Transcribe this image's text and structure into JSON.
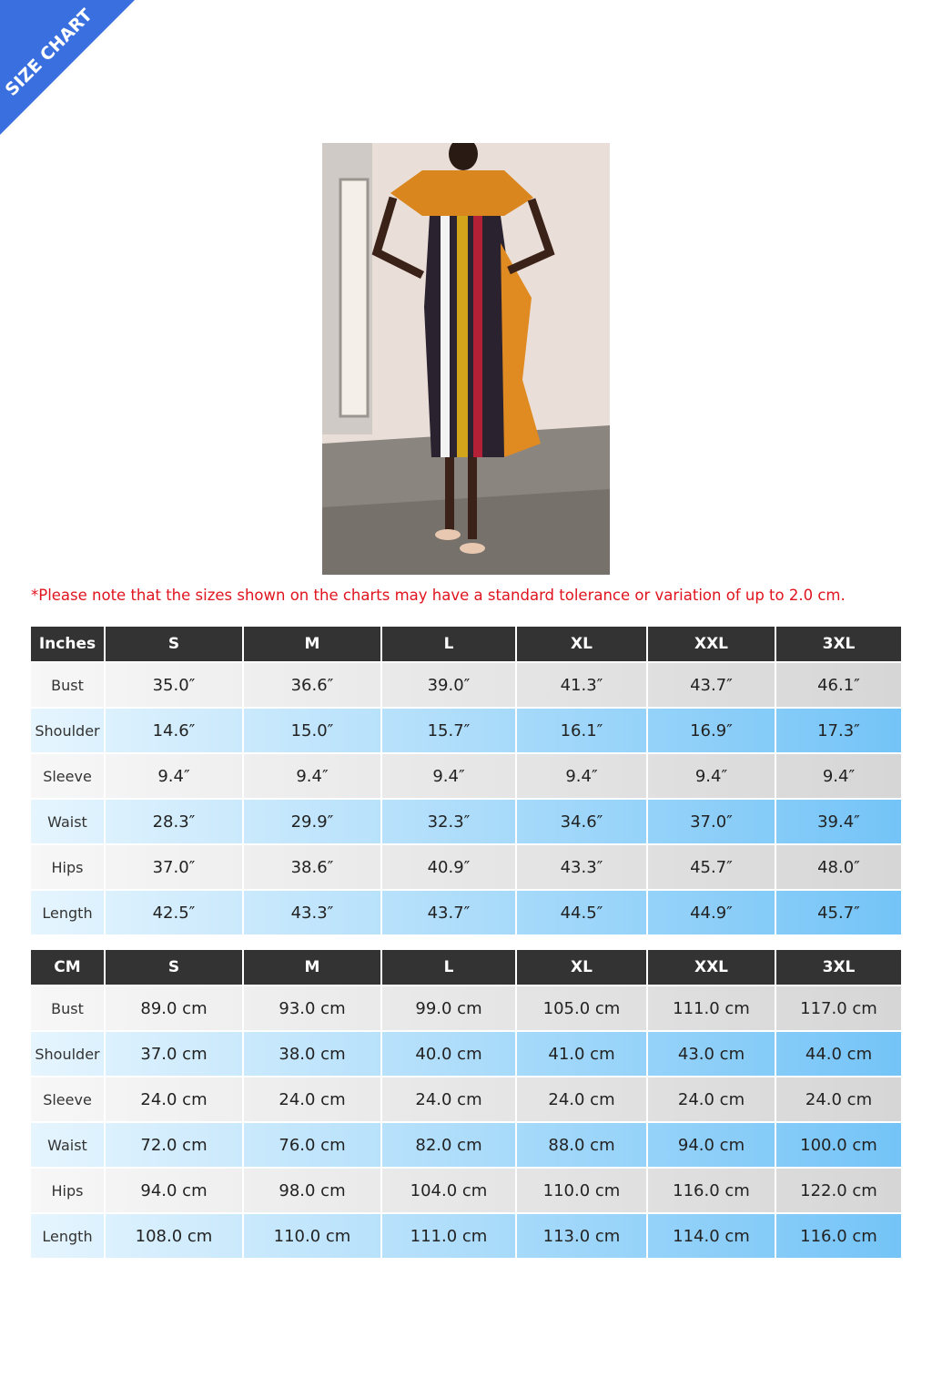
{
  "corner_label": "SIZE CHART",
  "note": "*Please note that the sizes shown on the charts may have a standard tolerance or variation of up to 2.0 cm.",
  "tables": [
    {
      "header": [
        "Inches",
        "S",
        "M",
        "L",
        "XL",
        "XXL",
        "3XL"
      ],
      "rows": [
        [
          "Bust",
          "35.0″",
          "36.6″",
          "39.0″",
          "41.3″",
          "43.7″",
          "46.1″"
        ],
        [
          "Shoulder",
          "14.6″",
          "15.0″",
          "15.7″",
          "16.1″",
          "16.9″",
          "17.3″"
        ],
        [
          "Sleeve",
          "9.4″",
          "9.4″",
          "9.4″",
          "9.4″",
          "9.4″",
          "9.4″"
        ],
        [
          "Waist",
          "28.3″",
          "29.9″",
          "32.3″",
          "34.6″",
          "37.0″",
          "39.4″"
        ],
        [
          "Hips",
          "37.0″",
          "38.6″",
          "40.9″",
          "43.3″",
          "45.7″",
          "48.0″"
        ],
        [
          "Length",
          "42.5″",
          "43.3″",
          "43.7″",
          "44.5″",
          "44.9″",
          "45.7″"
        ]
      ]
    },
    {
      "header": [
        "CM",
        "S",
        "M",
        "L",
        "XL",
        "XXL",
        "3XL"
      ],
      "rows": [
        [
          "Bust",
          "89.0 cm",
          "93.0 cm",
          "99.0 cm",
          "105.0 cm",
          "111.0 cm",
          "117.0 cm"
        ],
        [
          "Shoulder",
          "37.0 cm",
          "38.0 cm",
          "40.0 cm",
          "41.0 cm",
          "43.0 cm",
          "44.0 cm"
        ],
        [
          "Sleeve",
          "24.0 cm",
          "24.0 cm",
          "24.0 cm",
          "24.0 cm",
          "24.0 cm",
          "24.0 cm"
        ],
        [
          "Waist",
          "72.0 cm",
          "76.0 cm",
          "82.0 cm",
          "88.0 cm",
          "94.0 cm",
          "100.0 cm"
        ],
        [
          "Hips",
          "94.0 cm",
          "98.0 cm",
          "104.0 cm",
          "110.0 cm",
          "116.0 cm",
          "122.0 cm"
        ],
        [
          "Length",
          "108.0 cm",
          "110.0 cm",
          "111.0 cm",
          "113.0 cm",
          "114.0 cm",
          "116.0 cm"
        ]
      ]
    }
  ]
}
